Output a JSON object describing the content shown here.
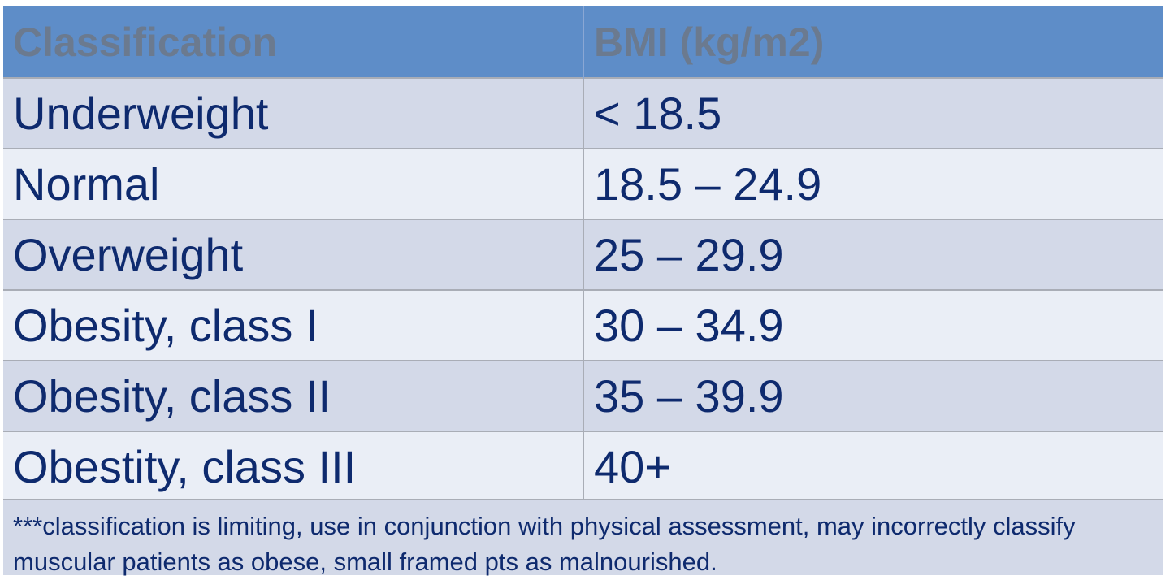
{
  "table": {
    "headers": [
      "Classification",
      "BMI (kg/m2)"
    ],
    "rows": [
      [
        "Underweight",
        "< 18.5"
      ],
      [
        "Normal",
        "18.5 – 24.9"
      ],
      [
        "Overweight",
        "25 – 29.9"
      ],
      [
        "Obesity, class I",
        "30 – 34.9"
      ],
      [
        "Obesity, class II",
        "35 – 39.9"
      ],
      [
        "Obestity, class III",
        "40+"
      ]
    ]
  },
  "footnote": "***classification is limiting, use in conjunction with physical assessment, may incorrectly classify muscular patients as obese, small framed pts as malnourished.",
  "colors": {
    "header_bg": "#5e8dc8",
    "header_text": "#6b7a8f",
    "row_odd": "#d3d9e8",
    "row_even": "#eaeef6",
    "body_text": "#0e2a6e"
  }
}
